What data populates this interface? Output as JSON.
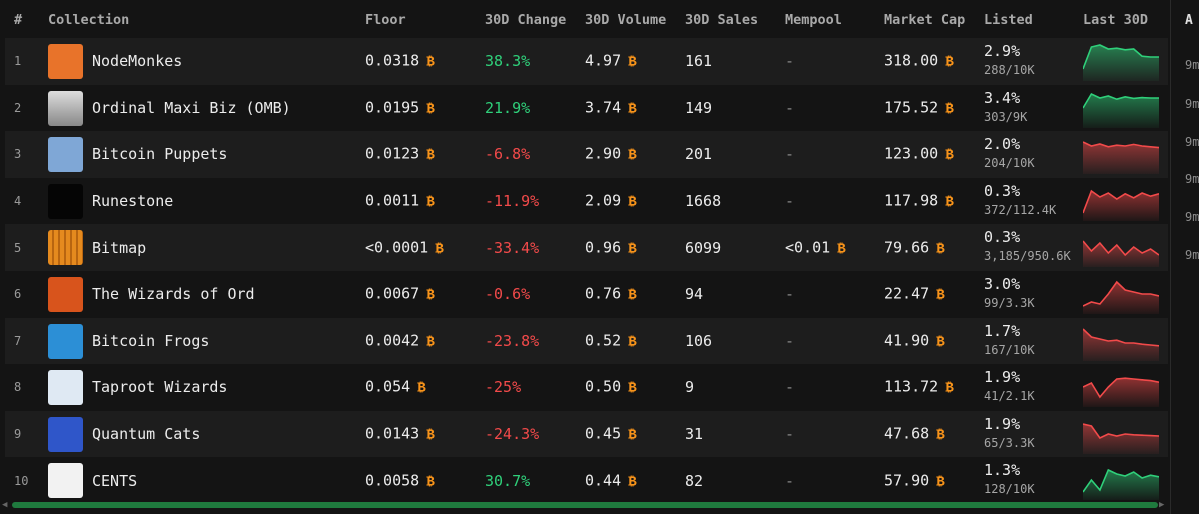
{
  "headers": {
    "rank": "#",
    "collection": "Collection",
    "floor": "Floor",
    "change": "30D Change",
    "volume": "30D Volume",
    "sales": "30D Sales",
    "mempool": "Mempool",
    "mcap": "Market Cap",
    "listed": "Listed",
    "last30": "Last 30D"
  },
  "btc_symbol": "₿",
  "colors": {
    "btc": "#f7931a",
    "positive": "#2fd07a",
    "negative": "#f24a4a",
    "scroll": "#1f7a3e"
  },
  "rows": [
    {
      "rank": "1",
      "name": "NodeMonkes",
      "floor": "0.0318",
      "change": "38.3%",
      "trend": "up",
      "volume": "4.97",
      "sales": "161",
      "mempool": "-",
      "mcap": "318.00",
      "listed_pct": "2.9%",
      "listed_frac": "288/10K",
      "thumb": "nodemonkes-icon"
    },
    {
      "rank": "2",
      "name": "Ordinal Maxi Biz (OMB)",
      "floor": "0.0195",
      "change": "21.9%",
      "trend": "up",
      "volume": "3.74",
      "sales": "149",
      "mempool": "-",
      "mcap": "175.52",
      "listed_pct": "3.4%",
      "listed_frac": "303/9K",
      "thumb": "omb-icon"
    },
    {
      "rank": "3",
      "name": "Bitcoin Puppets",
      "floor": "0.0123",
      "change": "-6.8%",
      "trend": "down",
      "volume": "2.90",
      "sales": "201",
      "mempool": "-",
      "mcap": "123.00",
      "listed_pct": "2.0%",
      "listed_frac": "204/10K",
      "thumb": "puppets-icon"
    },
    {
      "rank": "4",
      "name": "Runestone",
      "floor": "0.0011",
      "change": "-11.9%",
      "trend": "down",
      "volume": "2.09",
      "sales": "1668",
      "mempool": "-",
      "mcap": "117.98",
      "listed_pct": "0.3%",
      "listed_frac": "372/112.4K",
      "thumb": "runestone-icon"
    },
    {
      "rank": "5",
      "name": "Bitmap",
      "floor": "<0.0001",
      "change": "-33.4%",
      "trend": "down",
      "volume": "0.96",
      "sales": "6099",
      "mempool": "<0.01",
      "mcap": "79.66",
      "listed_pct": "0.3%",
      "listed_frac": "3,185/950.6K",
      "thumb": "bitmap-icon"
    },
    {
      "rank": "6",
      "name": "The Wizards of Ord",
      "floor": "0.0067",
      "change": "-0.6%",
      "trend": "down",
      "volume": "0.76",
      "sales": "94",
      "mempool": "-",
      "mcap": "22.47",
      "listed_pct": "3.0%",
      "listed_frac": "99/3.3K",
      "thumb": "wizards-icon"
    },
    {
      "rank": "7",
      "name": "Bitcoin Frogs",
      "floor": "0.0042",
      "change": "-23.8%",
      "trend": "down",
      "volume": "0.52",
      "sales": "106",
      "mempool": "-",
      "mcap": "41.90",
      "listed_pct": "1.7%",
      "listed_frac": "167/10K",
      "thumb": "frogs-icon"
    },
    {
      "rank": "8",
      "name": "Taproot Wizards",
      "floor": "0.054",
      "change": "-25%",
      "trend": "down",
      "volume": "0.50",
      "sales": "9",
      "mempool": "-",
      "mcap": "113.72",
      "listed_pct": "1.9%",
      "listed_frac": "41/2.1K",
      "thumb": "taproot-icon"
    },
    {
      "rank": "9",
      "name": "Quantum Cats",
      "floor": "0.0143",
      "change": "-24.3%",
      "trend": "down",
      "volume": "0.45",
      "sales": "31",
      "mempool": "-",
      "mcap": "47.68",
      "listed_pct": "1.9%",
      "listed_frac": "65/3.3K",
      "thumb": "quantum-cats-icon"
    },
    {
      "rank": "10",
      "name": "CENTS",
      "floor": "0.0058",
      "change": "30.7%",
      "trend": "up",
      "volume": "0.44",
      "sales": "82",
      "mempool": "-",
      "mcap": "57.90",
      "listed_pct": "1.3%",
      "listed_frac": "128/10K",
      "thumb": "cents-icon"
    }
  ],
  "sparklines": [
    [
      0.3,
      0.85,
      0.9,
      0.8,
      0.82,
      0.78,
      0.8,
      0.62,
      0.6,
      0.6
    ],
    [
      0.5,
      0.85,
      0.75,
      0.8,
      0.72,
      0.78,
      0.74,
      0.76,
      0.75,
      0.75
    ],
    [
      0.8,
      0.7,
      0.75,
      0.68,
      0.72,
      0.7,
      0.74,
      0.7,
      0.68,
      0.66
    ],
    [
      0.2,
      0.75,
      0.6,
      0.7,
      0.55,
      0.68,
      0.58,
      0.7,
      0.62,
      0.68
    ],
    [
      0.65,
      0.4,
      0.6,
      0.35,
      0.55,
      0.3,
      0.5,
      0.35,
      0.45,
      0.3
    ],
    [
      0.2,
      0.3,
      0.25,
      0.5,
      0.8,
      0.6,
      0.55,
      0.5,
      0.5,
      0.45
    ],
    [
      0.8,
      0.6,
      0.55,
      0.5,
      0.52,
      0.45,
      0.45,
      0.42,
      0.4,
      0.38
    ],
    [
      0.5,
      0.6,
      0.25,
      0.5,
      0.7,
      0.72,
      0.7,
      0.68,
      0.66,
      0.62
    ],
    [
      0.75,
      0.7,
      0.4,
      0.5,
      0.45,
      0.5,
      0.48,
      0.47,
      0.46,
      0.45
    ],
    [
      0.2,
      0.5,
      0.25,
      0.75,
      0.65,
      0.6,
      0.7,
      0.55,
      0.62,
      0.58
    ]
  ],
  "side_panel": {
    "header": "A",
    "items": [
      "9m",
      "9m",
      "9m",
      "9m",
      "9m",
      "9m"
    ]
  }
}
